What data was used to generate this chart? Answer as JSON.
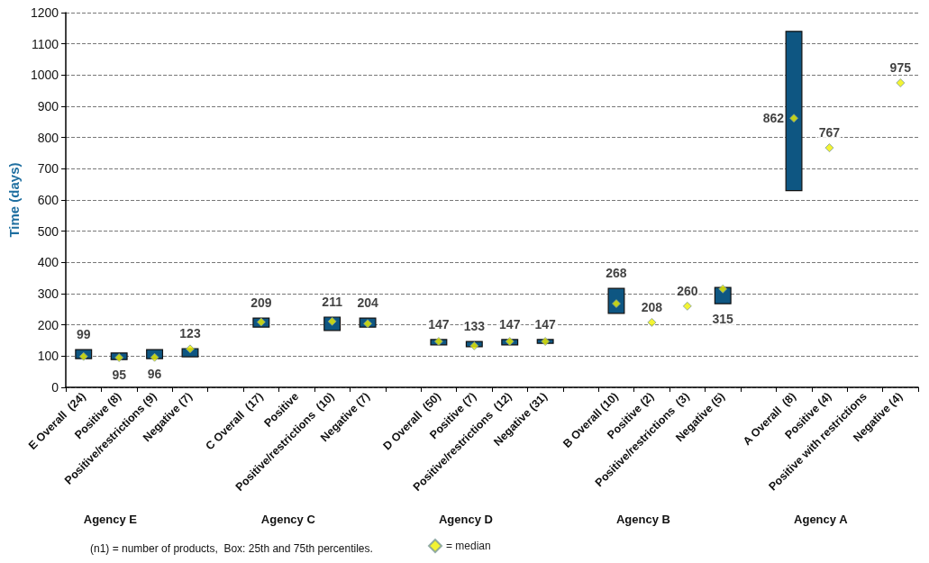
{
  "chart_data": {
    "type": "bar",
    "ylabel": "Time (days)",
    "categories": [
      "E Overall  (24)",
      "Positive (8)",
      "Positive/restrictions (9)",
      "Negative (7)",
      null,
      "C Overall  (17)",
      "Positive",
      "Positive/restrictions  (10)",
      "Negative (7)",
      null,
      "D Overall  (50)",
      "Positive (7)",
      "Positive/restrictions  (12)",
      "Negative (31)",
      null,
      "B Overall (10)",
      "Positive (2)",
      "Positive/restrictions  (3)",
      "Negative (5)",
      null,
      "A Overall  (8)",
      "Positive (4)",
      "Positive with restrictions",
      "Negative (4)"
    ],
    "series": [
      {
        "color": "#0e5682",
        "base": [
          92,
          89,
          92,
          98,
          null,
          193,
          null,
          182,
          193,
          null,
          136,
          130,
          136,
          141,
          null,
          237,
          null,
          null,
          268,
          null,
          630,
          null,
          null,
          null
        ],
        "values": [
          29,
          21,
          29,
          26,
          null,
          29,
          null,
          43,
          29,
          null,
          17,
          17,
          17,
          12,
          null,
          80,
          null,
          null,
          52,
          null,
          510,
          null,
          null,
          null
        ]
      },
      {
        "type": "scatter",
        "name": "= median",
        "color": "#f0f000",
        "marker": "diamond",
        "values": [
          99,
          95,
          96,
          123,
          null,
          209,
          null,
          211,
          204,
          null,
          147,
          133,
          147,
          147,
          null,
          268,
          208,
          260,
          315,
          null,
          862,
          767,
          null,
          975
        ],
        "value_labels": [
          "99",
          "95",
          "96",
          "123",
          null,
          "209",
          null,
          "211",
          "204",
          null,
          "147",
          "133",
          "147",
          "147",
          null,
          "268",
          "208",
          "260",
          "315",
          null,
          "862",
          "767",
          null,
          "975"
        ]
      }
    ],
    "ylim": [
      0,
      1200
    ],
    "yticks": [
      0,
      100,
      200,
      300,
      400,
      500,
      600,
      700,
      800,
      900,
      1000,
      1100,
      1200
    ],
    "grid": "y",
    "legend": "bottom",
    "annotations": [
      "Agency E",
      "Agency C",
      "Agency D",
      "Agency B",
      "Agency A",
      "(n1) = number of products,  Box: 25th and 75th percentiles."
    ]
  }
}
